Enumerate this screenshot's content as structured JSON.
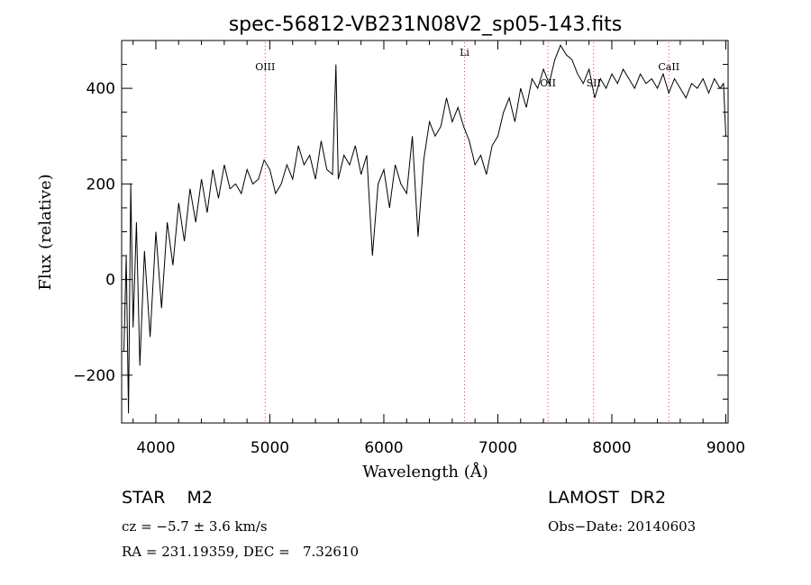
{
  "chart_data": {
    "type": "line",
    "title": "spec-56812-VB231N08V2_sp05-143.fits",
    "xlabel": "Wavelength (Å)",
    "ylabel": "Flux (relative)",
    "xlim": [
      3700,
      9020
    ],
    "ylim": [
      -300,
      500
    ],
    "xticks": [
      4000,
      5000,
      6000,
      7000,
      8000,
      9000
    ],
    "yticks": [
      -200,
      0,
      200,
      400
    ],
    "grid": false,
    "lines": [
      {
        "label": "OIII",
        "wavelength": 4959
      },
      {
        "label": "Li",
        "wavelength": 6708
      },
      {
        "label": "OII",
        "wavelength": 7440
      },
      {
        "label": "SII",
        "wavelength": 7840
      },
      {
        "label": "CaII",
        "wavelength": 8500
      }
    ],
    "series": [
      {
        "color": "#000000",
        "x": [
          3720,
          3740,
          3760,
          3780,
          3800,
          3830,
          3860,
          3900,
          3950,
          4000,
          4050,
          4100,
          4150,
          4200,
          4250,
          4300,
          4350,
          4400,
          4450,
          4500,
          4550,
          4600,
          4650,
          4700,
          4750,
          4800,
          4850,
          4900,
          4950,
          5000,
          5050,
          5100,
          5150,
          5200,
          5250,
          5300,
          5350,
          5400,
          5450,
          5500,
          5550,
          5580,
          5600,
          5650,
          5700,
          5750,
          5800,
          5850,
          5900,
          5950,
          6000,
          6050,
          6100,
          6150,
          6200,
          6250,
          6300,
          6350,
          6400,
          6450,
          6500,
          6550,
          6600,
          6650,
          6700,
          6750,
          6800,
          6850,
          6900,
          6950,
          7000,
          7050,
          7100,
          7150,
          7200,
          7250,
          7300,
          7350,
          7400,
          7450,
          7500,
          7550,
          7600,
          7650,
          7700,
          7750,
          7800,
          7850,
          7900,
          7950,
          8000,
          8050,
          8100,
          8150,
          8200,
          8250,
          8300,
          8350,
          8400,
          8450,
          8500,
          8550,
          8600,
          8650,
          8700,
          8750,
          8800,
          8850,
          8900,
          8950,
          8980,
          9000
        ],
        "y": [
          -150,
          50,
          -280,
          200,
          -100,
          120,
          -180,
          60,
          -120,
          100,
          -60,
          120,
          30,
          160,
          80,
          190,
          120,
          210,
          140,
          230,
          170,
          240,
          190,
          200,
          180,
          230,
          200,
          210,
          250,
          230,
          180,
          200,
          240,
          210,
          280,
          240,
          260,
          210,
          290,
          230,
          220,
          450,
          210,
          260,
          240,
          280,
          220,
          260,
          50,
          200,
          230,
          150,
          240,
          200,
          180,
          300,
          90,
          250,
          330,
          300,
          320,
          380,
          330,
          360,
          320,
          290,
          240,
          260,
          220,
          280,
          300,
          350,
          380,
          330,
          400,
          360,
          420,
          400,
          440,
          410,
          460,
          490,
          470,
          460,
          430,
          410,
          440,
          380,
          420,
          400,
          430,
          410,
          440,
          420,
          400,
          430,
          410,
          420,
          400,
          430,
          390,
          420,
          400,
          380,
          410,
          400,
          420,
          390,
          420,
          400,
          410,
          300
        ]
      }
    ]
  },
  "info": {
    "object": "STAR    M2",
    "velocity": "cz = −5.7 ± 3.6 km/s",
    "coords": "RA = 231.19359, DEC =   7.32610",
    "survey": "LAMOST  DR2",
    "obs_date": "Obs−Date: 20140603"
  }
}
